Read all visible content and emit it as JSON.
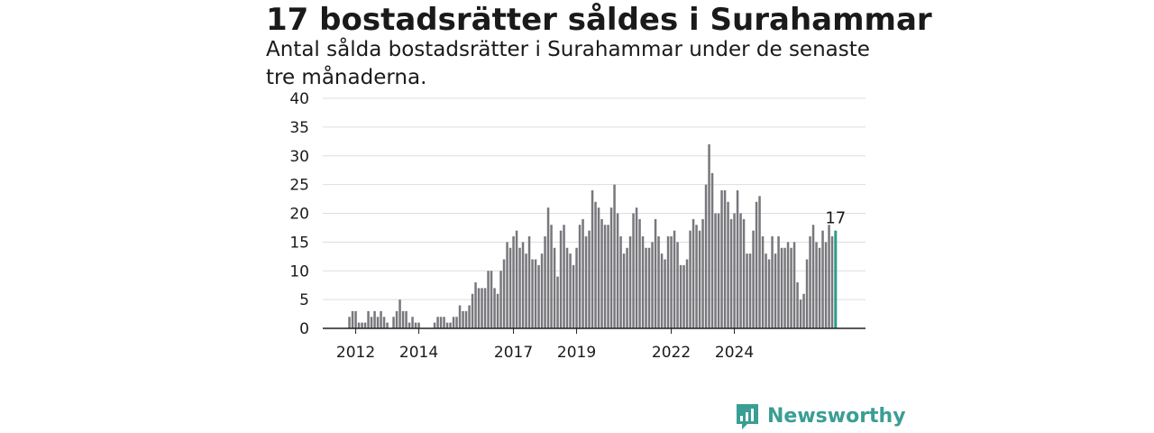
{
  "title": "17 bostadsrätter såldes i Surahammar",
  "subtitle": "Antal sålda bostadsrätter i Surahammar under de senaste tre månaderna.",
  "logo": {
    "text": "Newsworthy",
    "icon": "newsworthy-chart-bubble-icon"
  },
  "colors": {
    "bar": "#77777c",
    "highlight": "#2a9d8f",
    "grid": "#dddddd",
    "axis": "#222222",
    "logo": "#3a9e94"
  },
  "chart_data": {
    "type": "bar",
    "title": "17 bostadsrätter såldes i Surahammar",
    "xlabel": "",
    "ylabel": "",
    "ylim": [
      0,
      40
    ],
    "yticks": [
      0,
      5,
      10,
      15,
      20,
      25,
      30,
      35,
      40
    ],
    "grid": true,
    "legend": "none",
    "x_tick_labels": [
      {
        "label": "2012",
        "index": 2
      },
      {
        "label": "2014",
        "index": 22
      },
      {
        "label": "2017",
        "index": 52
      },
      {
        "label": "2019",
        "index": 72
      },
      {
        "label": "2022",
        "index": 102
      },
      {
        "label": "2024",
        "index": 122
      }
    ],
    "values": [
      2,
      3,
      3,
      1,
      1,
      1,
      3,
      2,
      3,
      2,
      3,
      2,
      1,
      0,
      2,
      3,
      5,
      3,
      3,
      1,
      2,
      1,
      1,
      0,
      0,
      0,
      0,
      1,
      2,
      2,
      2,
      1,
      1,
      2,
      2,
      4,
      3,
      3,
      4,
      6,
      8,
      7,
      7,
      7,
      10,
      10,
      7,
      6,
      10,
      12,
      15,
      14,
      16,
      17,
      14,
      15,
      13,
      16,
      12,
      12,
      11,
      13,
      16,
      21,
      18,
      14,
      9,
      17,
      18,
      14,
      13,
      11,
      14,
      18,
      19,
      16,
      17,
      24,
      22,
      21,
      19,
      18,
      18,
      21,
      25,
      20,
      16,
      13,
      14,
      16,
      20,
      21,
      19,
      16,
      14,
      14,
      15,
      19,
      16,
      13,
      12,
      16,
      16,
      17,
      15,
      11,
      11,
      12,
      17,
      19,
      18,
      17,
      19,
      25,
      32,
      27,
      20,
      20,
      24,
      24,
      22,
      19,
      20,
      24,
      20,
      19,
      13,
      13,
      17,
      22,
      23,
      16,
      13,
      12,
      16,
      13,
      16,
      14,
      14,
      15,
      14,
      15,
      8,
      5,
      6,
      12,
      16,
      18,
      15,
      14,
      17,
      15,
      18,
      16,
      17
    ],
    "highlight_index": 154,
    "last_value_label": "17"
  }
}
